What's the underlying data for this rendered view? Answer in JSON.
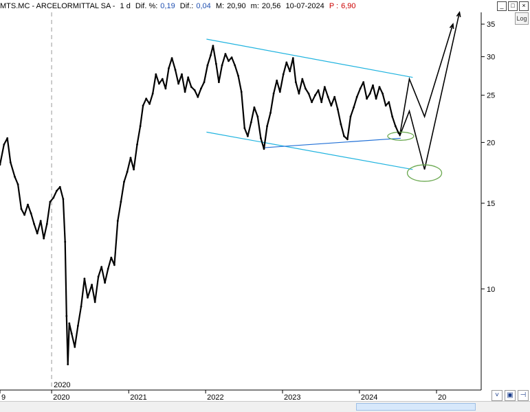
{
  "header": {
    "symbol_name": "MTS.MC - ARCELORMITTAL SA -",
    "interval": "1 d",
    "dif_pct_label": "Dif. %:",
    "dif_pct_value": "0,19",
    "dif_label": "Dif.:",
    "dif_value": "0,04",
    "max_label": "M:",
    "max_value": "20,90",
    "min_label": "m:",
    "min_value": "20,56",
    "date": "10-07-2024",
    "p_label": "P :",
    "p_value": "6,90"
  },
  "controls": {
    "log_label": "Log"
  },
  "chart_data": {
    "type": "line",
    "scale": "log",
    "ylim": [
      6.2,
      37
    ],
    "xlim": [
      "2019-05-01",
      "2025-08-01"
    ],
    "y_ticks": [
      10,
      15,
      20,
      25,
      30,
      35
    ],
    "x_ticks": [
      {
        "label": "9",
        "date": "2019-05-01"
      },
      {
        "label": "2020",
        "date": "2020-01-01"
      },
      {
        "label": "2021",
        "date": "2021-01-01"
      },
      {
        "label": "2022",
        "date": "2022-01-01"
      },
      {
        "label": "2023",
        "date": "2023-01-01"
      },
      {
        "label": "2024",
        "date": "2024-01-01"
      },
      {
        "label": "20",
        "date": "2025-01-01"
      }
    ],
    "year_marker": {
      "label": "2020",
      "date": "2020-01-01"
    },
    "series": [
      {
        "points": [
          [
            "2019-05-01",
            18.0
          ],
          [
            "2019-05-20",
            19.8
          ],
          [
            "2019-06-05",
            20.4
          ],
          [
            "2019-06-20",
            18.2
          ],
          [
            "2019-07-10",
            17.0
          ],
          [
            "2019-07-25",
            16.4
          ],
          [
            "2019-08-10",
            14.6
          ],
          [
            "2019-08-25",
            14.2
          ],
          [
            "2019-09-10",
            14.9
          ],
          [
            "2019-09-25",
            14.3
          ],
          [
            "2019-10-10",
            13.6
          ],
          [
            "2019-10-25",
            13.0
          ],
          [
            "2019-11-10",
            13.8
          ],
          [
            "2019-11-25",
            12.7
          ],
          [
            "2019-12-10",
            13.6
          ],
          [
            "2019-12-25",
            15.1
          ],
          [
            "2020-01-10",
            15.4
          ],
          [
            "2020-01-25",
            15.9
          ],
          [
            "2020-02-10",
            16.2
          ],
          [
            "2020-02-25",
            15.3
          ],
          [
            "2020-03-05",
            12.5
          ],
          [
            "2020-03-12",
            8.8
          ],
          [
            "2020-03-18",
            7.0
          ],
          [
            "2020-03-25",
            8.5
          ],
          [
            "2020-04-05",
            8.1
          ],
          [
            "2020-04-20",
            7.6
          ],
          [
            "2020-05-05",
            8.4
          ],
          [
            "2020-05-20",
            9.2
          ],
          [
            "2020-06-05",
            10.5
          ],
          [
            "2020-06-20",
            9.6
          ],
          [
            "2020-07-10",
            10.2
          ],
          [
            "2020-07-25",
            9.4
          ],
          [
            "2020-08-10",
            10.6
          ],
          [
            "2020-08-25",
            11.1
          ],
          [
            "2020-09-10",
            10.3
          ],
          [
            "2020-09-25",
            11.0
          ],
          [
            "2020-10-10",
            11.6
          ],
          [
            "2020-10-25",
            11.2
          ],
          [
            "2020-11-10",
            13.8
          ],
          [
            "2020-11-25",
            15.1
          ],
          [
            "2020-12-10",
            16.6
          ],
          [
            "2020-12-25",
            17.4
          ],
          [
            "2021-01-10",
            18.6
          ],
          [
            "2021-01-25",
            17.6
          ],
          [
            "2021-02-10",
            19.8
          ],
          [
            "2021-02-25",
            21.6
          ],
          [
            "2021-03-10",
            23.8
          ],
          [
            "2021-03-25",
            24.6
          ],
          [
            "2021-04-10",
            24.0
          ],
          [
            "2021-04-25",
            25.2
          ],
          [
            "2021-05-10",
            27.6
          ],
          [
            "2021-05-25",
            26.4
          ],
          [
            "2021-06-10",
            27.0
          ],
          [
            "2021-06-25",
            25.8
          ],
          [
            "2021-07-10",
            28.4
          ],
          [
            "2021-07-25",
            29.8
          ],
          [
            "2021-08-10",
            28.2
          ],
          [
            "2021-08-25",
            26.4
          ],
          [
            "2021-09-10",
            27.6
          ],
          [
            "2021-09-25",
            25.4
          ],
          [
            "2021-10-10",
            27.2
          ],
          [
            "2021-10-25",
            26.0
          ],
          [
            "2021-11-10",
            25.6
          ],
          [
            "2021-11-25",
            24.8
          ],
          [
            "2021-12-10",
            25.8
          ],
          [
            "2021-12-25",
            26.6
          ],
          [
            "2022-01-10",
            28.8
          ],
          [
            "2022-01-25",
            30.2
          ],
          [
            "2022-02-05",
            31.6
          ],
          [
            "2022-02-20",
            29.0
          ],
          [
            "2022-03-05",
            26.6
          ],
          [
            "2022-03-20",
            28.8
          ],
          [
            "2022-04-05",
            30.4
          ],
          [
            "2022-04-20",
            29.4
          ],
          [
            "2022-05-05",
            29.9
          ],
          [
            "2022-05-20",
            28.8
          ],
          [
            "2022-06-05",
            27.4
          ],
          [
            "2022-06-20",
            25.4
          ],
          [
            "2022-07-05",
            21.4
          ],
          [
            "2022-07-20",
            20.6
          ],
          [
            "2022-08-05",
            22.0
          ],
          [
            "2022-08-20",
            23.6
          ],
          [
            "2022-09-05",
            22.6
          ],
          [
            "2022-09-20",
            20.4
          ],
          [
            "2022-10-05",
            19.4
          ],
          [
            "2022-10-20",
            21.6
          ],
          [
            "2022-11-05",
            23.0
          ],
          [
            "2022-11-20",
            25.2
          ],
          [
            "2022-12-05",
            26.8
          ],
          [
            "2022-12-20",
            25.4
          ],
          [
            "2023-01-05",
            27.6
          ],
          [
            "2023-01-20",
            29.2
          ],
          [
            "2023-02-05",
            28.0
          ],
          [
            "2023-02-20",
            29.8
          ],
          [
            "2023-03-05",
            26.6
          ],
          [
            "2023-03-20",
            25.2
          ],
          [
            "2023-04-05",
            27.0
          ],
          [
            "2023-04-20",
            25.8
          ],
          [
            "2023-05-05",
            25.2
          ],
          [
            "2023-05-20",
            24.2
          ],
          [
            "2023-06-05",
            25.0
          ],
          [
            "2023-06-20",
            25.6
          ],
          [
            "2023-07-05",
            24.2
          ],
          [
            "2023-07-20",
            26.0
          ],
          [
            "2023-08-05",
            24.8
          ],
          [
            "2023-08-20",
            23.8
          ],
          [
            "2023-09-05",
            24.8
          ],
          [
            "2023-09-20",
            23.4
          ],
          [
            "2023-10-05",
            21.8
          ],
          [
            "2023-10-20",
            20.6
          ],
          [
            "2023-11-05",
            20.3
          ],
          [
            "2023-11-20",
            22.6
          ],
          [
            "2023-12-05",
            23.6
          ],
          [
            "2023-12-20",
            24.8
          ],
          [
            "2024-01-05",
            25.8
          ],
          [
            "2024-01-20",
            26.6
          ],
          [
            "2024-02-05",
            24.6
          ],
          [
            "2024-02-20",
            25.2
          ],
          [
            "2024-03-05",
            26.2
          ],
          [
            "2024-03-20",
            24.6
          ],
          [
            "2024-04-05",
            26.0
          ],
          [
            "2024-04-20",
            25.2
          ],
          [
            "2024-05-05",
            23.8
          ],
          [
            "2024-05-20",
            24.2
          ],
          [
            "2024-06-05",
            22.6
          ],
          [
            "2024-06-20",
            21.6
          ],
          [
            "2024-07-05",
            20.9
          ],
          [
            "2024-07-10",
            20.8
          ]
        ]
      }
    ],
    "drawings": {
      "trendlines_cyan": [
        [
          [
            "2022-01-05",
            32.6
          ],
          [
            "2024-09-10",
            27.2
          ]
        ],
        [
          [
            "2022-01-05",
            21.0
          ],
          [
            "2024-09-10",
            17.6
          ]
        ]
      ],
      "trendlines_blue": [
        [
          [
            "2022-10-01",
            19.5
          ],
          [
            "2024-07-15",
            20.4
          ]
        ]
      ],
      "projection_paths": [
        [
          [
            "2024-07-10",
            20.6
          ],
          [
            "2024-08-25",
            27.0
          ],
          [
            "2024-11-05",
            22.6
          ],
          [
            "2025-03-20",
            35.0
          ]
        ],
        [
          [
            "2024-07-10",
            20.6
          ],
          [
            "2024-08-25",
            23.2
          ],
          [
            "2024-11-05",
            17.6
          ],
          [
            "2025-04-20",
            37.0
          ]
        ]
      ],
      "ellipses_green": [
        {
          "center": [
            "2024-07-15",
            20.6
          ]
        },
        {
          "center": [
            "2024-11-05",
            17.3
          ]
        }
      ],
      "colors": {
        "price": "#000000",
        "channel": "#1fb3df",
        "support": "#1f6fd6",
        "ellipse": "#6aa84f",
        "projection": "#000000"
      }
    }
  }
}
